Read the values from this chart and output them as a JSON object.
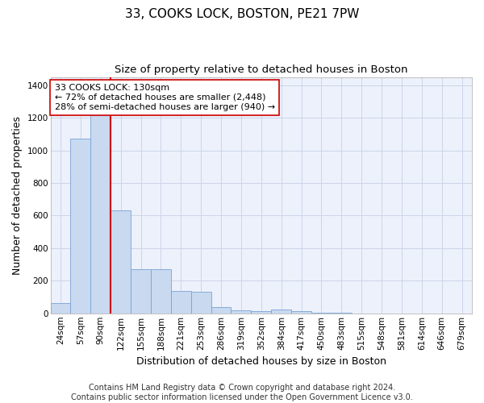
{
  "title": "33, COOKS LOCK, BOSTON, PE21 7PW",
  "subtitle": "Size of property relative to detached houses in Boston",
  "xlabel": "Distribution of detached houses by size in Boston",
  "ylabel": "Number of detached properties",
  "footer_line1": "Contains HM Land Registry data © Crown copyright and database right 2024.",
  "footer_line2": "Contains public sector information licensed under the Open Government Licence v3.0.",
  "annotation_line1": "33 COOKS LOCK: 130sqm",
  "annotation_line2": "← 72% of detached houses are smaller (2,448)",
  "annotation_line3": "28% of semi-detached houses are larger (940) →",
  "bar_color": "#c8d9f0",
  "bar_edge_color": "#7aa3d4",
  "vline_color": "#cc0000",
  "grid_color": "#ccd5e8",
  "background_color": "#edf1fb",
  "categories": [
    "24sqm",
    "57sqm",
    "90sqm",
    "122sqm",
    "155sqm",
    "188sqm",
    "221sqm",
    "253sqm",
    "286sqm",
    "319sqm",
    "352sqm",
    "384sqm",
    "417sqm",
    "450sqm",
    "483sqm",
    "515sqm",
    "548sqm",
    "581sqm",
    "614sqm",
    "646sqm",
    "679sqm"
  ],
  "values": [
    65,
    1070,
    1230,
    630,
    270,
    270,
    135,
    130,
    40,
    20,
    15,
    22,
    14,
    5,
    2,
    0,
    1,
    0,
    0,
    0,
    0
  ],
  "ylim": [
    0,
    1450
  ],
  "yticks": [
    0,
    200,
    400,
    600,
    800,
    1000,
    1200,
    1400
  ],
  "vline_x_index": 2,
  "title_fontsize": 11,
  "subtitle_fontsize": 9.5,
  "axis_label_fontsize": 9,
  "tick_fontsize": 7.5,
  "annotation_fontsize": 8,
  "footer_fontsize": 7
}
